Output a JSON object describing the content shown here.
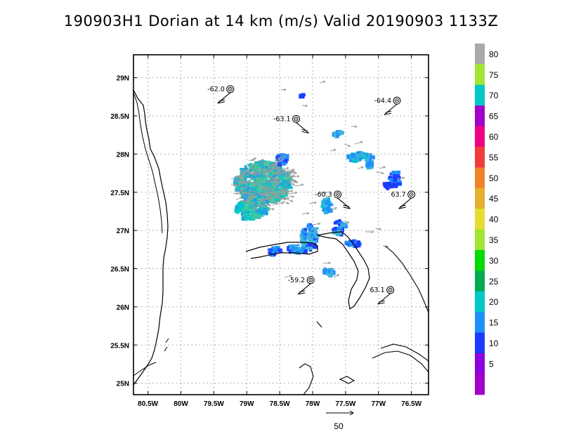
{
  "title": "190903H1 Dorian at 14 km (m/s) Valid 20190903 1133Z",
  "lat_labels": [
    "29N",
    "28.5N",
    "28N",
    "27.5N",
    "27N",
    "26.5N",
    "26N",
    "25.5N",
    "25N"
  ],
  "lon_labels": [
    "80.5W",
    "80W",
    "79.5W",
    "79W",
    "78.5W",
    "78W",
    "77.5W",
    "77W",
    "76.5W"
  ],
  "colorbar": {
    "labels": [
      "80",
      "75",
      "70",
      "65",
      "60",
      "55",
      "50",
      "45",
      "40",
      "35",
      "30",
      "25",
      "20",
      "15",
      "10",
      "5"
    ],
    "colors": [
      "#aaaaaa",
      "#a0e632",
      "#00c8c8",
      "#a000c8",
      "#f00082",
      "#f03c3c",
      "#f08228",
      "#e6af2d",
      "#e6dc32",
      "#a0e632",
      "#00dc00",
      "#00aa50",
      "#00c8c8",
      "#1e90ff",
      "#1e3cff",
      "#8c00dc",
      "#a000c8"
    ]
  },
  "scale_vector_label": "50",
  "dropsondes": [
    {
      "label": "-62.0",
      "lat": 28.85,
      "lon": -79.25
    },
    {
      "label": "-64.4",
      "lat": 28.7,
      "lon": -76.72
    },
    {
      "label": "-63.1",
      "lat": 28.46,
      "lon": -78.25
    },
    {
      "label": "-60.3",
      "lat": 27.47,
      "lon": -77.62
    },
    {
      "label": "63.7",
      "lat": 27.47,
      "lon": -76.5
    },
    {
      "label": "-59.2",
      "lat": 26.35,
      "lon": -78.03
    },
    {
      "label": "63.1",
      "lat": 26.22,
      "lon": -76.82
    }
  ]
}
